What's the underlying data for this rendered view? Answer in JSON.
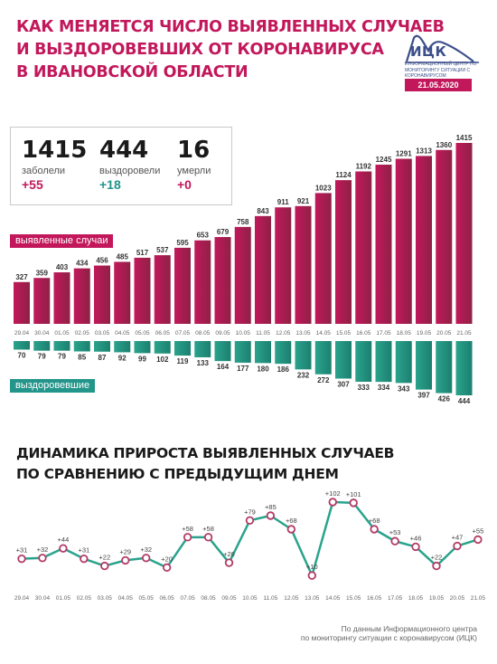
{
  "header": {
    "title_lines": [
      "КАК МЕНЯЕТСЯ ЧИСЛО ВЫЯВЛЕННЫХ СЛУЧАЕВ",
      "И ВЫЗДОРОВЕВШИХ ОТ КОРОНАВИРУСА",
      "В ИВАНОВСКОЙ ОБЛАСТИ"
    ],
    "logo_name": "ИЦК",
    "logo_subtitle": "ИНФОРМАЦИОННЫЙ ЦЕНТР ПО МОНИТОРИНГУ СИТУАЦИИ С КОРОНАВИРУСОМ",
    "date": "21.05.2020"
  },
  "summary": {
    "cases": {
      "value": "1415",
      "label": "заболели",
      "delta": "+55"
    },
    "recovered": {
      "value": "444",
      "label": "выздоровели",
      "delta": "+18"
    },
    "deaths": {
      "value": "16",
      "label": "умерли",
      "delta": "+0"
    }
  },
  "colors": {
    "cases": "#c2185b",
    "recovered": "#23958a",
    "line": "#2aa38c",
    "marker": "#b33a66"
  },
  "section2": {
    "title_lines": [
      "ДИНАМИКА ПРИРОСТА ВЫЯВЛЕННЫХ СЛУЧАЕВ",
      "ПО СРАВНЕНИЮ С ПРЕДЫДУЩИМ ДНЕМ"
    ]
  },
  "footnote": {
    "lines": [
      "По данным Информационного центра",
      "по мониторингу ситуации с коронавирусом (ИЦК)"
    ]
  },
  "chart_data": [
    {
      "type": "bar",
      "categories": [
        "29.04",
        "30.04",
        "01.05",
        "02.05",
        "03.05",
        "04.05",
        "05.05",
        "06.05",
        "07.05",
        "08.05",
        "09.05",
        "10.05",
        "11.05",
        "12.05",
        "13.05",
        "14.05",
        "15.05",
        "16.05",
        "17.05",
        "18.05",
        "19.05",
        "20.05",
        "21.05"
      ],
      "series": [
        {
          "name": "выявленные случаи",
          "values": [
            327,
            359,
            403,
            434,
            456,
            485,
            517,
            537,
            595,
            653,
            679,
            758,
            843,
            911,
            921,
            1023,
            1124,
            1192,
            1245,
            1291,
            1313,
            1360,
            1415
          ]
        },
        {
          "name": "выздоровевшие",
          "values": [
            70,
            79,
            79,
            85,
            87,
            92,
            99,
            102,
            119,
            133,
            164,
            177,
            180,
            186,
            232,
            272,
            307,
            333,
            334,
            343,
            397,
            426,
            444
          ]
        }
      ]
    },
    {
      "type": "line",
      "categories": [
        "29.04",
        "30.04",
        "01.05",
        "02.05",
        "03.05",
        "04.05",
        "05.05",
        "06.05",
        "07.05",
        "08.05",
        "09.05",
        "10.05",
        "11.05",
        "12.05",
        "13.05",
        "14.05",
        "15.05",
        "16.05",
        "17.05",
        "18.05",
        "19.05",
        "20.05",
        "21.05"
      ],
      "values": [
        31,
        32,
        44,
        31,
        22,
        29,
        32,
        20,
        58,
        58,
        26,
        79,
        85,
        68,
        10,
        102,
        101,
        68,
        53,
        46,
        22,
        47,
        55
      ],
      "labels": [
        "+31",
        "+32",
        "+44",
        "+31",
        "+22",
        "+29",
        "+32",
        "+20",
        "+58",
        "+58",
        "+26",
        "+79",
        "+85",
        "+68",
        "+10",
        "+102",
        "+101",
        "+68",
        "+53",
        "+46",
        "+22",
        "+47",
        "+55"
      ]
    }
  ]
}
